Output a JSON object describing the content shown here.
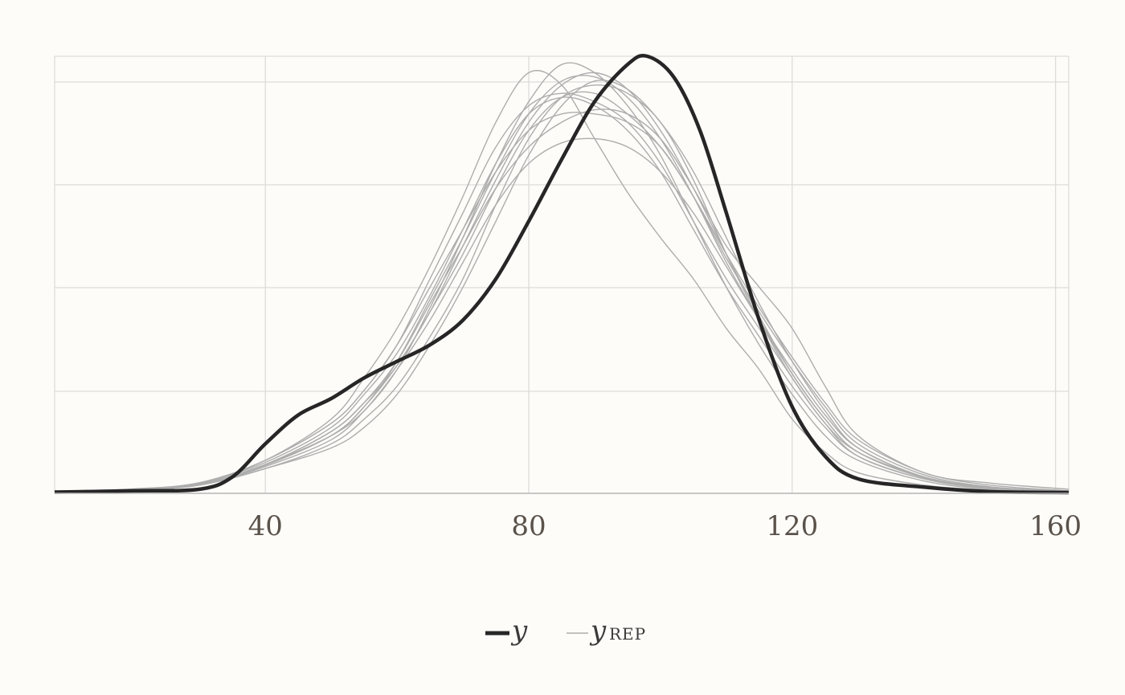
{
  "chart_data": {
    "type": "line",
    "title": "",
    "xlabel": "",
    "ylabel": "",
    "xlim": [
      8,
      162
    ],
    "ylim": [
      0,
      1.06
    ],
    "x_ticks": [
      40,
      80,
      120,
      160
    ],
    "x_tick_labels": [
      "40",
      "80",
      "120",
      "160"
    ],
    "grid": true,
    "legend_position": "bottom",
    "legend": [
      {
        "symbol": "y",
        "subscript": "",
        "style": "thick-dark"
      },
      {
        "symbol": "y",
        "subscript": "REP",
        "style": "thin-gray"
      }
    ],
    "colors": {
      "observed": "#262626",
      "replicated": "#adadad",
      "grid": "#dcdcdc",
      "axis": "#b5b5b5",
      "background": "#fdfcf9"
    },
    "observed": {
      "name": "y",
      "x": [
        8,
        20,
        30,
        35,
        40,
        45,
        50,
        55,
        60,
        65,
        70,
        75,
        80,
        85,
        90,
        95,
        98,
        102,
        106,
        110,
        115,
        120,
        125,
        130,
        140,
        150,
        162
      ],
      "y": [
        0.003,
        0.006,
        0.01,
        0.04,
        0.12,
        0.19,
        0.23,
        0.28,
        0.32,
        0.36,
        0.42,
        0.52,
        0.66,
        0.81,
        0.95,
        1.04,
        1.06,
        1.01,
        0.88,
        0.68,
        0.42,
        0.21,
        0.09,
        0.035,
        0.015,
        0.004,
        0.002
      ]
    },
    "replicated": [
      {
        "x": [
          8,
          20,
          30,
          40,
          50,
          55,
          60,
          65,
          70,
          75,
          80,
          85,
          90,
          95,
          100,
          105,
          110,
          115,
          120,
          125,
          130,
          140,
          150,
          162
        ],
        "y": [
          0.005,
          0.01,
          0.025,
          0.08,
          0.18,
          0.28,
          0.4,
          0.55,
          0.72,
          0.9,
          1.02,
          0.99,
          0.86,
          0.73,
          0.62,
          0.52,
          0.4,
          0.3,
          0.18,
          0.1,
          0.05,
          0.02,
          0.008,
          0.003
        ]
      },
      {
        "x": [
          8,
          20,
          30,
          40,
          50,
          55,
          60,
          65,
          70,
          75,
          80,
          85,
          90,
          95,
          100,
          105,
          110,
          115,
          120,
          125,
          130,
          140,
          150,
          162
        ],
        "y": [
          0.004,
          0.01,
          0.02,
          0.07,
          0.14,
          0.2,
          0.3,
          0.45,
          0.62,
          0.8,
          0.95,
          1.04,
          1.02,
          0.94,
          0.82,
          0.66,
          0.5,
          0.36,
          0.24,
          0.14,
          0.08,
          0.03,
          0.01,
          0.003
        ]
      },
      {
        "x": [
          8,
          20,
          30,
          40,
          50,
          55,
          60,
          65,
          70,
          75,
          80,
          85,
          90,
          95,
          100,
          105,
          110,
          115,
          120,
          125,
          130,
          140,
          150,
          162
        ],
        "y": [
          0.004,
          0.008,
          0.02,
          0.06,
          0.12,
          0.18,
          0.26,
          0.38,
          0.52,
          0.7,
          0.86,
          0.96,
          0.99,
          0.97,
          0.9,
          0.76,
          0.58,
          0.42,
          0.28,
          0.17,
          0.09,
          0.035,
          0.012,
          0.004
        ]
      },
      {
        "x": [
          8,
          20,
          30,
          40,
          50,
          55,
          60,
          65,
          70,
          75,
          80,
          85,
          90,
          95,
          100,
          105,
          110,
          115,
          120,
          125,
          130,
          140,
          150,
          162
        ],
        "y": [
          0.005,
          0.01,
          0.025,
          0.075,
          0.16,
          0.24,
          0.34,
          0.48,
          0.64,
          0.8,
          0.92,
          0.96,
          0.94,
          0.88,
          0.78,
          0.64,
          0.5,
          0.38,
          0.26,
          0.16,
          0.09,
          0.035,
          0.012,
          0.004
        ]
      },
      {
        "x": [
          8,
          20,
          30,
          40,
          50,
          55,
          60,
          65,
          70,
          75,
          80,
          85,
          90,
          95,
          100,
          105,
          110,
          115,
          120,
          125,
          130,
          140,
          150,
          162
        ],
        "y": [
          0.004,
          0.009,
          0.02,
          0.065,
          0.13,
          0.2,
          0.3,
          0.42,
          0.56,
          0.7,
          0.8,
          0.85,
          0.86,
          0.84,
          0.78,
          0.68,
          0.55,
          0.42,
          0.3,
          0.19,
          0.11,
          0.04,
          0.015,
          0.005
        ]
      },
      {
        "x": [
          8,
          20,
          30,
          40,
          50,
          55,
          60,
          65,
          70,
          75,
          80,
          85,
          90,
          95,
          100,
          105,
          110,
          115,
          120,
          125,
          130,
          140,
          150,
          162
        ],
        "y": [
          0.005,
          0.01,
          0.022,
          0.07,
          0.15,
          0.22,
          0.32,
          0.46,
          0.6,
          0.74,
          0.84,
          0.9,
          0.93,
          0.92,
          0.86,
          0.74,
          0.6,
          0.5,
          0.4,
          0.26,
          0.14,
          0.05,
          0.025,
          0.01
        ]
      },
      {
        "x": [
          8,
          20,
          30,
          40,
          50,
          55,
          60,
          65,
          70,
          75,
          80,
          85,
          90,
          95,
          100,
          105,
          110,
          115,
          120,
          125,
          130,
          140,
          150,
          162
        ],
        "y": [
          0.004,
          0.01,
          0.024,
          0.08,
          0.17,
          0.25,
          0.36,
          0.52,
          0.68,
          0.84,
          0.94,
          0.97,
          0.95,
          0.9,
          0.8,
          0.66,
          0.52,
          0.4,
          0.28,
          0.17,
          0.1,
          0.04,
          0.012,
          0.004
        ]
      },
      {
        "x": [
          8,
          20,
          30,
          40,
          50,
          55,
          60,
          65,
          70,
          75,
          80,
          85,
          90,
          95,
          100,
          105,
          110,
          115,
          120,
          125,
          130,
          140,
          150,
          162
        ],
        "y": [
          0.004,
          0.008,
          0.02,
          0.06,
          0.11,
          0.16,
          0.24,
          0.36,
          0.5,
          0.66,
          0.82,
          0.94,
          1.0,
          0.98,
          0.9,
          0.78,
          0.62,
          0.46,
          0.32,
          0.2,
          0.11,
          0.04,
          0.015,
          0.005
        ]
      },
      {
        "x": [
          8,
          20,
          30,
          40,
          50,
          55,
          60,
          65,
          70,
          75,
          80,
          85,
          90,
          95,
          100,
          105,
          110,
          115,
          120,
          125,
          130,
          140,
          150,
          162
        ],
        "y": [
          0.005,
          0.01,
          0.023,
          0.07,
          0.15,
          0.22,
          0.31,
          0.44,
          0.58,
          0.74,
          0.88,
          0.96,
          0.97,
          0.92,
          0.84,
          0.72,
          0.57,
          0.44,
          0.32,
          0.21,
          0.12,
          0.045,
          0.016,
          0.005
        ]
      },
      {
        "x": [
          8,
          20,
          30,
          40,
          50,
          55,
          60,
          65,
          70,
          75,
          80,
          85,
          90,
          95,
          100,
          105,
          110,
          115,
          120,
          125,
          130,
          140,
          150,
          162
        ],
        "y": [
          0.004,
          0.01,
          0.022,
          0.07,
          0.14,
          0.21,
          0.31,
          0.44,
          0.6,
          0.76,
          0.9,
          0.99,
          1.02,
          0.98,
          0.88,
          0.74,
          0.58,
          0.43,
          0.29,
          0.18,
          0.1,
          0.038,
          0.013,
          0.004
        ]
      },
      {
        "x": [
          8,
          20,
          30,
          40,
          50,
          55,
          60,
          65,
          70,
          75,
          80,
          85,
          90,
          95,
          100,
          105,
          110,
          115,
          120,
          125,
          130,
          140,
          150,
          162
        ],
        "y": [
          0.005,
          0.011,
          0.026,
          0.08,
          0.17,
          0.25,
          0.36,
          0.5,
          0.64,
          0.78,
          0.88,
          0.92,
          0.92,
          0.9,
          0.84,
          0.72,
          0.58,
          0.45,
          0.33,
          0.22,
          0.13,
          0.05,
          0.02,
          0.006
        ]
      },
      {
        "x": [
          8,
          20,
          30,
          40,
          50,
          55,
          60,
          65,
          70,
          75,
          80,
          85,
          90,
          95,
          100,
          105,
          110,
          115,
          120,
          125,
          130,
          140,
          150,
          162
        ],
        "y": [
          0.004,
          0.009,
          0.021,
          0.068,
          0.14,
          0.21,
          0.32,
          0.47,
          0.62,
          0.78,
          0.92,
          1.0,
          1.01,
          0.96,
          0.86,
          0.72,
          0.56,
          0.42,
          0.29,
          0.18,
          0.1,
          0.038,
          0.013,
          0.004
        ]
      }
    ]
  }
}
